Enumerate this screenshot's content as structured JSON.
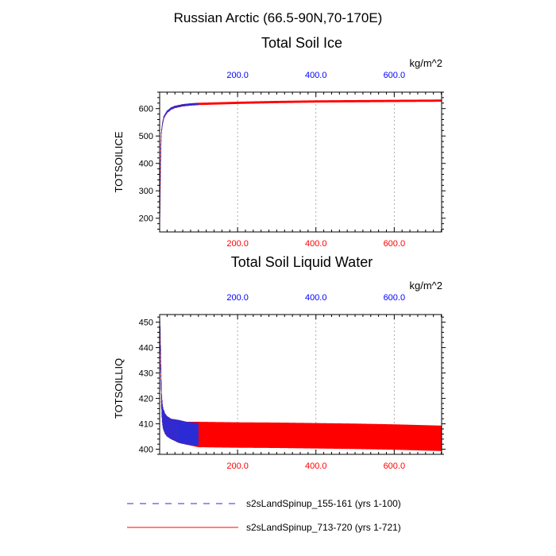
{
  "figure": {
    "main_title": "Russian Arctic (66.5-90N,70-170E)"
  },
  "colors": {
    "series_a": "#2b2bd6",
    "series_b": "#ff0000",
    "top_axis": "#0000ff",
    "bottom_axis": "#ff0000"
  },
  "legend": {
    "items": [
      {
        "label": "s2sLandSpinup_155-161 (yrs 1-100)",
        "style": "dashed",
        "color": "#2b2bd6"
      },
      {
        "label": "s2sLandSpinup_713-720 (yrs 1-721)",
        "style": "solid",
        "color": "#ff0000"
      }
    ]
  },
  "chart_data": [
    {
      "type": "line",
      "title": "Total Soil Ice",
      "units": "kg/m^2",
      "ylabel": "TOTSOILICE",
      "ylim": [
        150,
        660
      ],
      "yticks": [
        200,
        300,
        400,
        500,
        600
      ],
      "xlim": [
        1,
        721
      ],
      "xticks_bottom": [
        200,
        400,
        600
      ],
      "xticklabels_bottom": [
        "200.0",
        "400.0",
        "600.0"
      ],
      "xticks_top": [
        200,
        400,
        600
      ],
      "xticklabels_top": [
        "200.0",
        "400.0",
        "600.0"
      ],
      "series": [
        {
          "name": "s2sLandSpinup_155-161 (yrs 1-100)",
          "x_range": [
            1,
            100
          ],
          "x": [
            1,
            3,
            5,
            8,
            12,
            16,
            20,
            30,
            40,
            60,
            80,
            100
          ],
          "y": [
            160,
            380,
            505,
            545,
            568,
            580,
            588,
            600,
            606,
            612,
            615,
            617
          ],
          "seasonal_amplitude": 4
        },
        {
          "name": "s2sLandSpinup_713-720 (yrs 1-721)",
          "x_range": [
            1,
            721
          ],
          "x": [
            1,
            3,
            5,
            8,
            12,
            16,
            20,
            30,
            40,
            60,
            80,
            100,
            150,
            200,
            300,
            400,
            500,
            600,
            721
          ],
          "y": [
            160,
            380,
            505,
            545,
            568,
            580,
            588,
            600,
            606,
            612,
            615,
            617,
            619,
            621,
            624,
            626,
            627,
            628,
            629
          ],
          "seasonal_amplitude": 4
        }
      ]
    },
    {
      "type": "line",
      "title": "Total Soil Liquid Water",
      "units": "kg/m^2",
      "ylabel": "TOTSOILLIQ",
      "ylim": [
        398,
        453
      ],
      "yticks": [
        400,
        410,
        420,
        430,
        440,
        450
      ],
      "xlim": [
        1,
        721
      ],
      "xticks_bottom": [
        200,
        400,
        600
      ],
      "xticklabels_bottom": [
        "200.0",
        "400.0",
        "600.0"
      ],
      "xticks_top": [
        200,
        400,
        600
      ],
      "xticklabels_top": [
        "200.0",
        "400.0",
        "600.0"
      ],
      "series": [
        {
          "name": "s2sLandSpinup_155-161 (yrs 1-100)",
          "x_range": [
            1,
            100
          ],
          "x": [
            1,
            2,
            4,
            6,
            8,
            10,
            15,
            20,
            30,
            50,
            70,
            100
          ],
          "y": [
            452,
            447,
            432,
            418,
            414,
            412,
            410,
            409,
            408,
            407,
            406.3,
            405.8
          ],
          "seasonal_amplitude": [
            0,
            3,
            3,
            4,
            4,
            4,
            4,
            4,
            4,
            4.5,
            4.5,
            4.5
          ]
        },
        {
          "name": "s2sLandSpinup_713-720 (yrs 1-721)",
          "x_range": [
            1,
            721
          ],
          "x": [
            1,
            2,
            4,
            6,
            8,
            10,
            15,
            20,
            30,
            50,
            70,
            100,
            200,
            300,
            400,
            500,
            600,
            721
          ],
          "y": [
            452,
            447,
            432,
            418,
            414,
            412,
            410,
            409,
            408,
            407,
            406.3,
            405.8,
            405.6,
            405.5,
            405.3,
            405.1,
            404.8,
            404.3
          ],
          "seasonal_amplitude": [
            0,
            3,
            3,
            4,
            4,
            4,
            4,
            4,
            4,
            4.5,
            4.5,
            5,
            5,
            5,
            5,
            5,
            5,
            5
          ]
        }
      ]
    }
  ]
}
